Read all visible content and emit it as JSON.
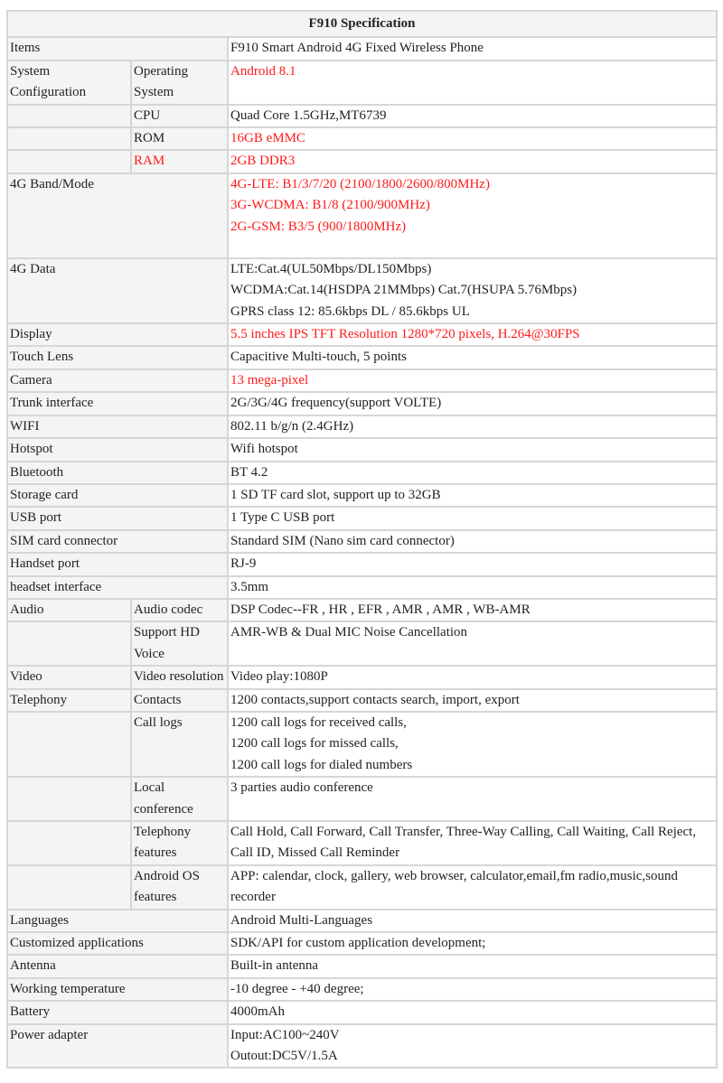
{
  "title": "F910 Specification",
  "accent_red": "#ff1a1a",
  "rows": [
    {
      "label": "Items",
      "sub": null,
      "value": [
        "F910 Smart Android 4G Fixed Wireless Phone"
      ]
    },
    {
      "label": "System Configuration",
      "sub": "Operating System",
      "value": [
        "Android 8.1"
      ],
      "value_red": true
    },
    {
      "label": "",
      "sub": "CPU",
      "value": [
        "Quad Core 1.5GHz,MT6739"
      ]
    },
    {
      "label": "",
      "sub": "ROM",
      "value": [
        "16GB eMMC"
      ],
      "value_red": true
    },
    {
      "label": "",
      "sub": "RAM",
      "value": [
        "2GB DDR3"
      ],
      "sub_red": true,
      "value_red": true
    },
    {
      "label": "4G Band/Mode",
      "sub": null,
      "value": [
        "4G-LTE: B1/3/7/20 (2100/1800/2600/800MHz)",
        "3G-WCDMA: B1/8 (2100/900MHz)",
        "2G-GSM: B3/5 (900/1800MHz)"
      ],
      "value_red": true,
      "tall": true
    },
    {
      "label": "4G Data",
      "sub": null,
      "value": [
        "LTE:Cat.4(UL50Mbps/DL150Mbps)",
        "WCDMA:Cat.14(HSDPA 21MMbps) Cat.7(HSUPA 5.76Mbps)",
        "GPRS class 12: 85.6kbps DL / 85.6kbps UL"
      ]
    },
    {
      "label": "Display",
      "sub": null,
      "value": [
        "5.5 inches IPS TFT Resolution 1280*720 pixels, H.264@30FPS"
      ],
      "value_red": true
    },
    {
      "label": "Touch Lens",
      "sub": null,
      "value": [
        "Capacitive Multi-touch, 5 points"
      ]
    },
    {
      "label": "Camera",
      "sub": null,
      "value": [
        "13 mega-pixel"
      ],
      "value_red": true
    },
    {
      "label": "Trunk interface",
      "sub": null,
      "value": [
        "2G/3G/4G frequency(support VOLTE)"
      ]
    },
    {
      "label": "WIFI",
      "sub": null,
      "value": [
        "802.11 b/g/n (2.4GHz)"
      ]
    },
    {
      "label": "Hotspot",
      "sub": null,
      "value": [
        "Wifi hotspot"
      ]
    },
    {
      "label": "Bluetooth",
      "sub": null,
      "value": [
        "BT 4.2"
      ]
    },
    {
      "label": "Storage card",
      "sub": null,
      "value": [
        "1 SD TF card slot, support up to 32GB"
      ]
    },
    {
      "label": "USB port",
      "sub": null,
      "value": [
        "1 Type C USB port"
      ]
    },
    {
      "label": "SIM card connector",
      "sub": null,
      "value": [
        "Standard SIM (Nano sim card connector)"
      ]
    },
    {
      "label": "Handset port",
      "sub": null,
      "value": [
        "RJ-9"
      ]
    },
    {
      "label": "headset interface",
      "sub": null,
      "value": [
        "3.5mm"
      ]
    },
    {
      "label": "Audio",
      "sub": "Audio codec",
      "value": [
        "DSP Codec--FR , HR , EFR , AMR , AMR , WB-AMR"
      ]
    },
    {
      "label": "",
      "sub": "Support HD Voice",
      "value": [
        "AMR-WB & Dual MIC Noise Cancellation"
      ]
    },
    {
      "label": "Video",
      "sub": "Video resolution",
      "value": [
        "Video play:1080P"
      ]
    },
    {
      "label": "Telephony",
      "sub": "Contacts",
      "value": [
        "1200 contacts,support contacts search, import, export"
      ]
    },
    {
      "label": "",
      "sub": "Call logs",
      "value": [
        "1200 call logs for received calls,",
        "1200 call logs for missed calls,",
        "1200 call logs for dialed numbers"
      ]
    },
    {
      "label": "",
      "sub": "Local conference",
      "value": [
        "3 parties audio conference"
      ]
    },
    {
      "label": "",
      "sub": "Telephony features",
      "value": [
        "Call Hold, Call Forward, Call Transfer, Three-Way Calling, Call Waiting, Call Reject, Call ID, Missed Call Reminder"
      ]
    },
    {
      "label": "",
      "sub": "Android OS features",
      "value": [
        "APP: calendar, clock, gallery, web browser, calculator,email,fm radio,music,sound recorder"
      ]
    },
    {
      "label": "Languages",
      "sub": null,
      "value": [
        "Android Multi-Languages"
      ]
    },
    {
      "label": "Customized applications",
      "sub": null,
      "value": [
        "SDK/API for custom application development;"
      ]
    },
    {
      "label": "Antenna",
      "sub": null,
      "value": [
        "Built-in antenna"
      ]
    },
    {
      "label": "Working temperature",
      "sub": null,
      "value": [
        "-10 degree - +40 degree;"
      ]
    },
    {
      "label": "Battery",
      "sub": null,
      "value": [
        "4000mAh"
      ]
    },
    {
      "label": "Power adapter",
      "sub": null,
      "value": [
        "Input:AC100~240V",
        "Outout:DC5V/1.5A"
      ]
    }
  ]
}
